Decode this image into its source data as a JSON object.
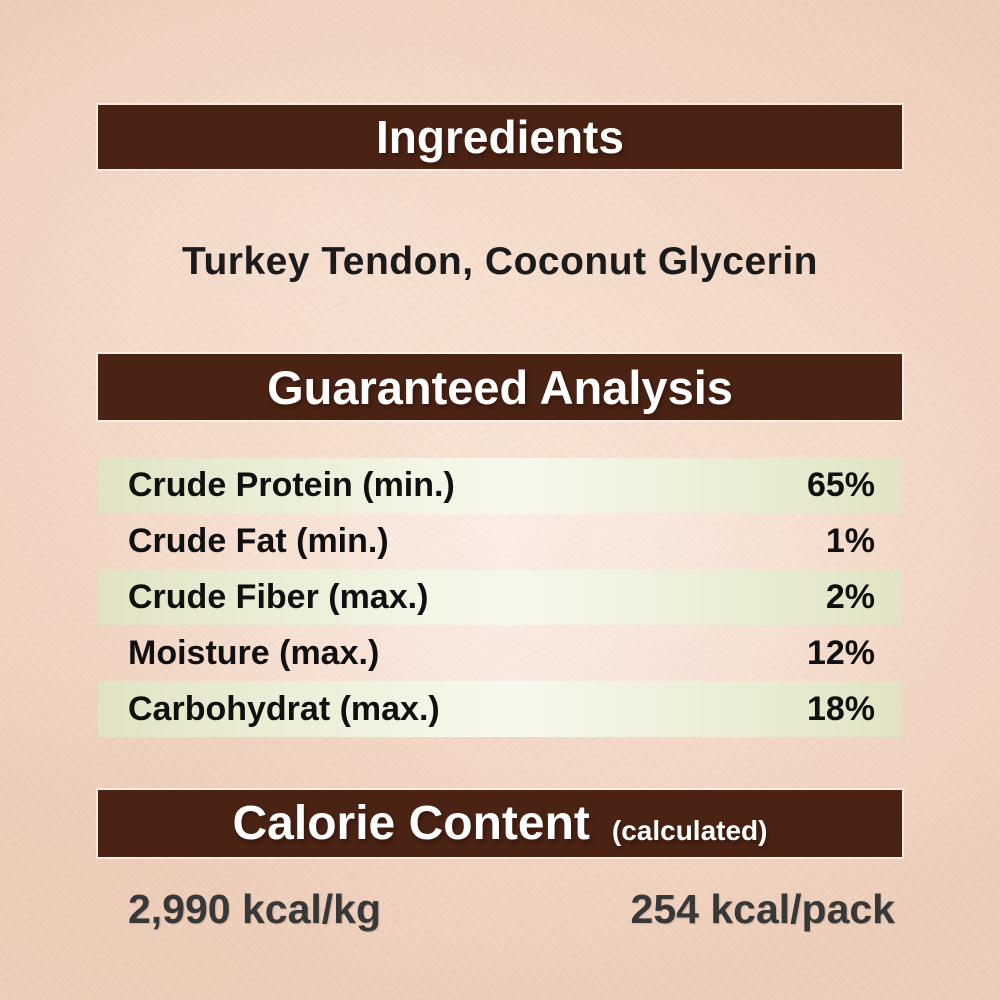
{
  "colors": {
    "bar_background": "#4a2314",
    "bar_text": "#ffffff",
    "page_background": "#f3d7c5",
    "row_green": "#e2e3c4",
    "body_text": "#1b1b1b",
    "kcal_text": "#383838"
  },
  "sections": {
    "ingredients": {
      "title": "Ingredients",
      "content": "Turkey Tendon, Coconut Glycerin"
    },
    "guaranteed_analysis": {
      "title": "Guaranteed Analysis",
      "rows": [
        {
          "label": "Crude Protein (min.)",
          "value": "65%"
        },
        {
          "label": "Crude Fat (min.)",
          "value": "1%"
        },
        {
          "label": "Crude Fiber (max.)",
          "value": "2%"
        },
        {
          "label": "Moisture (max.)",
          "value": "12%"
        },
        {
          "label": "Carbohydrat (max.)",
          "value": "18%"
        }
      ]
    },
    "calorie_content": {
      "title": "Calorie Content",
      "subtitle": "(calculated)",
      "per_kg": "2,990 kcal/kg",
      "per_pack": "254 kcal/pack"
    }
  }
}
